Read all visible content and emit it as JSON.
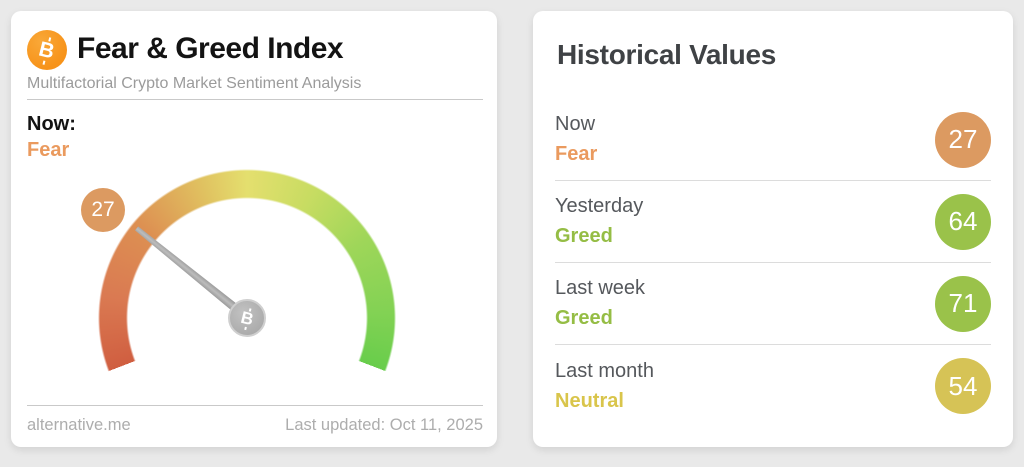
{
  "gauge_card": {
    "title": "Fear & Greed Index",
    "subtitle": "Multifactorial Crypto Market Sentiment Analysis",
    "now_label": "Now:",
    "now_classification": "Fear",
    "now_color": "#ea9a5e",
    "gauge": {
      "value": 27,
      "min": 0,
      "max": 100,
      "badge_value": "27",
      "badge_color": "#dc9a61",
      "scale_start_color": "#d05e40",
      "scale_mid_color": "#e4df6e",
      "scale_end_color": "#68cd4b"
    },
    "footer": {
      "source": "alternative.me",
      "last_updated": "Last updated: Oct 11, 2025"
    },
    "bitcoin_orange": "#f7931a"
  },
  "historical_card": {
    "title": "Historical Values",
    "rows": [
      {
        "label": "Now",
        "classification": "Fear",
        "value": "27",
        "badge_color": "#dc9a61",
        "text_color": "#ea9a5e"
      },
      {
        "label": "Yesterday",
        "classification": "Greed",
        "value": "64",
        "badge_color": "#9ac24a",
        "text_color": "#95bd45"
      },
      {
        "label": "Last week",
        "classification": "Greed",
        "value": "71",
        "badge_color": "#9ac24a",
        "text_color": "#95bd45"
      },
      {
        "label": "Last month",
        "classification": "Neutral",
        "value": "54",
        "badge_color": "#d6c356",
        "text_color": "#d9c54b"
      }
    ]
  }
}
